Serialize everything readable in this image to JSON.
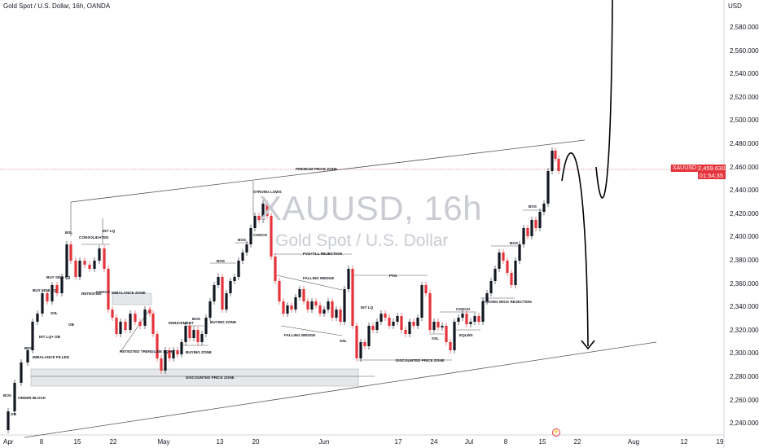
{
  "header": {
    "title": "Gold Spot / U.S. Dollar, 16h, OANDA"
  },
  "watermark": {
    "symbol": "XAUUSD, 16h",
    "name": "Gold Spot / U.S. Dollar"
  },
  "price_axis": {
    "currency": "USD",
    "labels": [
      "2,580.000",
      "2,560.000",
      "2,540.000",
      "2,520.000",
      "2,500.000",
      "2,480.000",
      "2,460.000",
      "2,440.000",
      "2,420.000",
      "2,400.000",
      "2,380.000",
      "2,360.000",
      "2,340.000",
      "2,320.000",
      "2,300.000",
      "2,280.000",
      "2,260.000",
      "2,240.000"
    ],
    "current_symbol": "XAUUSD",
    "current_price": "2,459.630",
    "countdown": "01:54:35"
  },
  "time_axis": {
    "labels": [
      "Apr",
      "8",
      "15",
      "22",
      "May",
      "13",
      "20",
      "Jun",
      "17",
      "24",
      "Jul",
      "8",
      "15",
      "22",
      "Aug",
      "12",
      "19"
    ]
  },
  "annotations": [
    "PREMIUM PRICE ZONE",
    "DISCOUNTED PRICE ZONE",
    "DISCOUNTED PRICE ZONE",
    "STRONG LOWS",
    "CHOCH",
    "FVG+TLL REJECTION",
    "FALLING WEDGE",
    "FALLING WEDGE",
    "SSL",
    "INT LQ",
    "FVG",
    "BOS",
    "BOS",
    "BOS",
    "BOS",
    "BOS",
    "BOS",
    "BSL",
    "CONSOLIDATED",
    "INT LQ",
    "BUY SIDE LQ",
    "BUY SIDE LQ",
    "SSL",
    "OB",
    "INT LQ+ OB",
    "IMBALANCE FILLED",
    "ORDER BLOCK",
    "OB",
    "BOS",
    "RETESTED",
    "CHOCH",
    "IMBALANCE ZONE",
    "INDUCEMENT",
    "BUYING ZONE",
    "BUYING ZONE",
    "RETESTED TRENDLINE LQ HIT",
    "CHOCH",
    "SSL",
    "EQLWS",
    "STRONG WICK REJECTION"
  ],
  "colors": {
    "bull": "#131722",
    "bear": "#e5333a",
    "price_line": "#e5333a"
  },
  "icons": [
    "tradingview-logo-icon"
  ]
}
